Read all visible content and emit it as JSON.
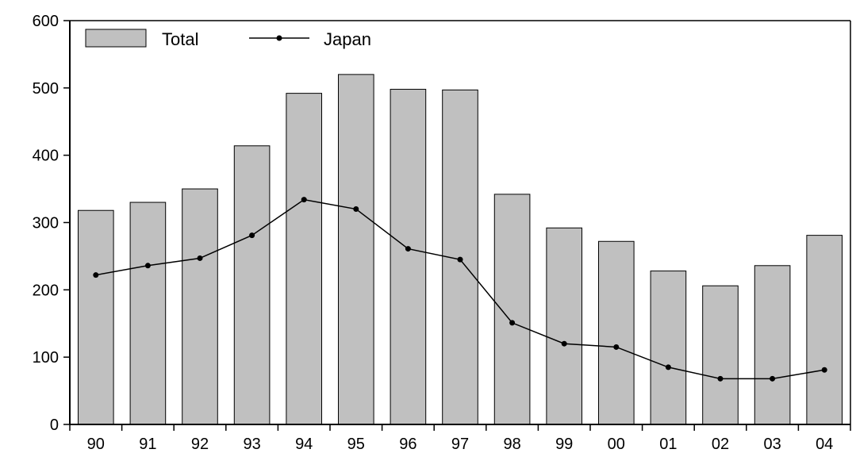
{
  "chart_data": {
    "type": "bar",
    "categories": [
      "90",
      "91",
      "92",
      "93",
      "94",
      "95",
      "96",
      "97",
      "98",
      "99",
      "00",
      "01",
      "02",
      "03",
      "04"
    ],
    "series": [
      {
        "name": "Total",
        "type": "bar",
        "color": "#c0c0c0",
        "values": [
          318,
          330,
          350,
          414,
          492,
          520,
          498,
          497,
          342,
          292,
          272,
          228,
          206,
          236,
          281
        ]
      },
      {
        "name": "Japan",
        "type": "line",
        "color": "#000000",
        "values": [
          222,
          236,
          247,
          281,
          334,
          320,
          261,
          245,
          151,
          120,
          115,
          85,
          68,
          68,
          81
        ]
      }
    ],
    "yticks": [
      "0",
      "100",
      "200",
      "300",
      "400",
      "500",
      "600"
    ],
    "ylim": [
      0,
      600
    ],
    "grid": false,
    "legend": {
      "placement": "top-left",
      "items": [
        "Total",
        "Japan"
      ]
    }
  }
}
